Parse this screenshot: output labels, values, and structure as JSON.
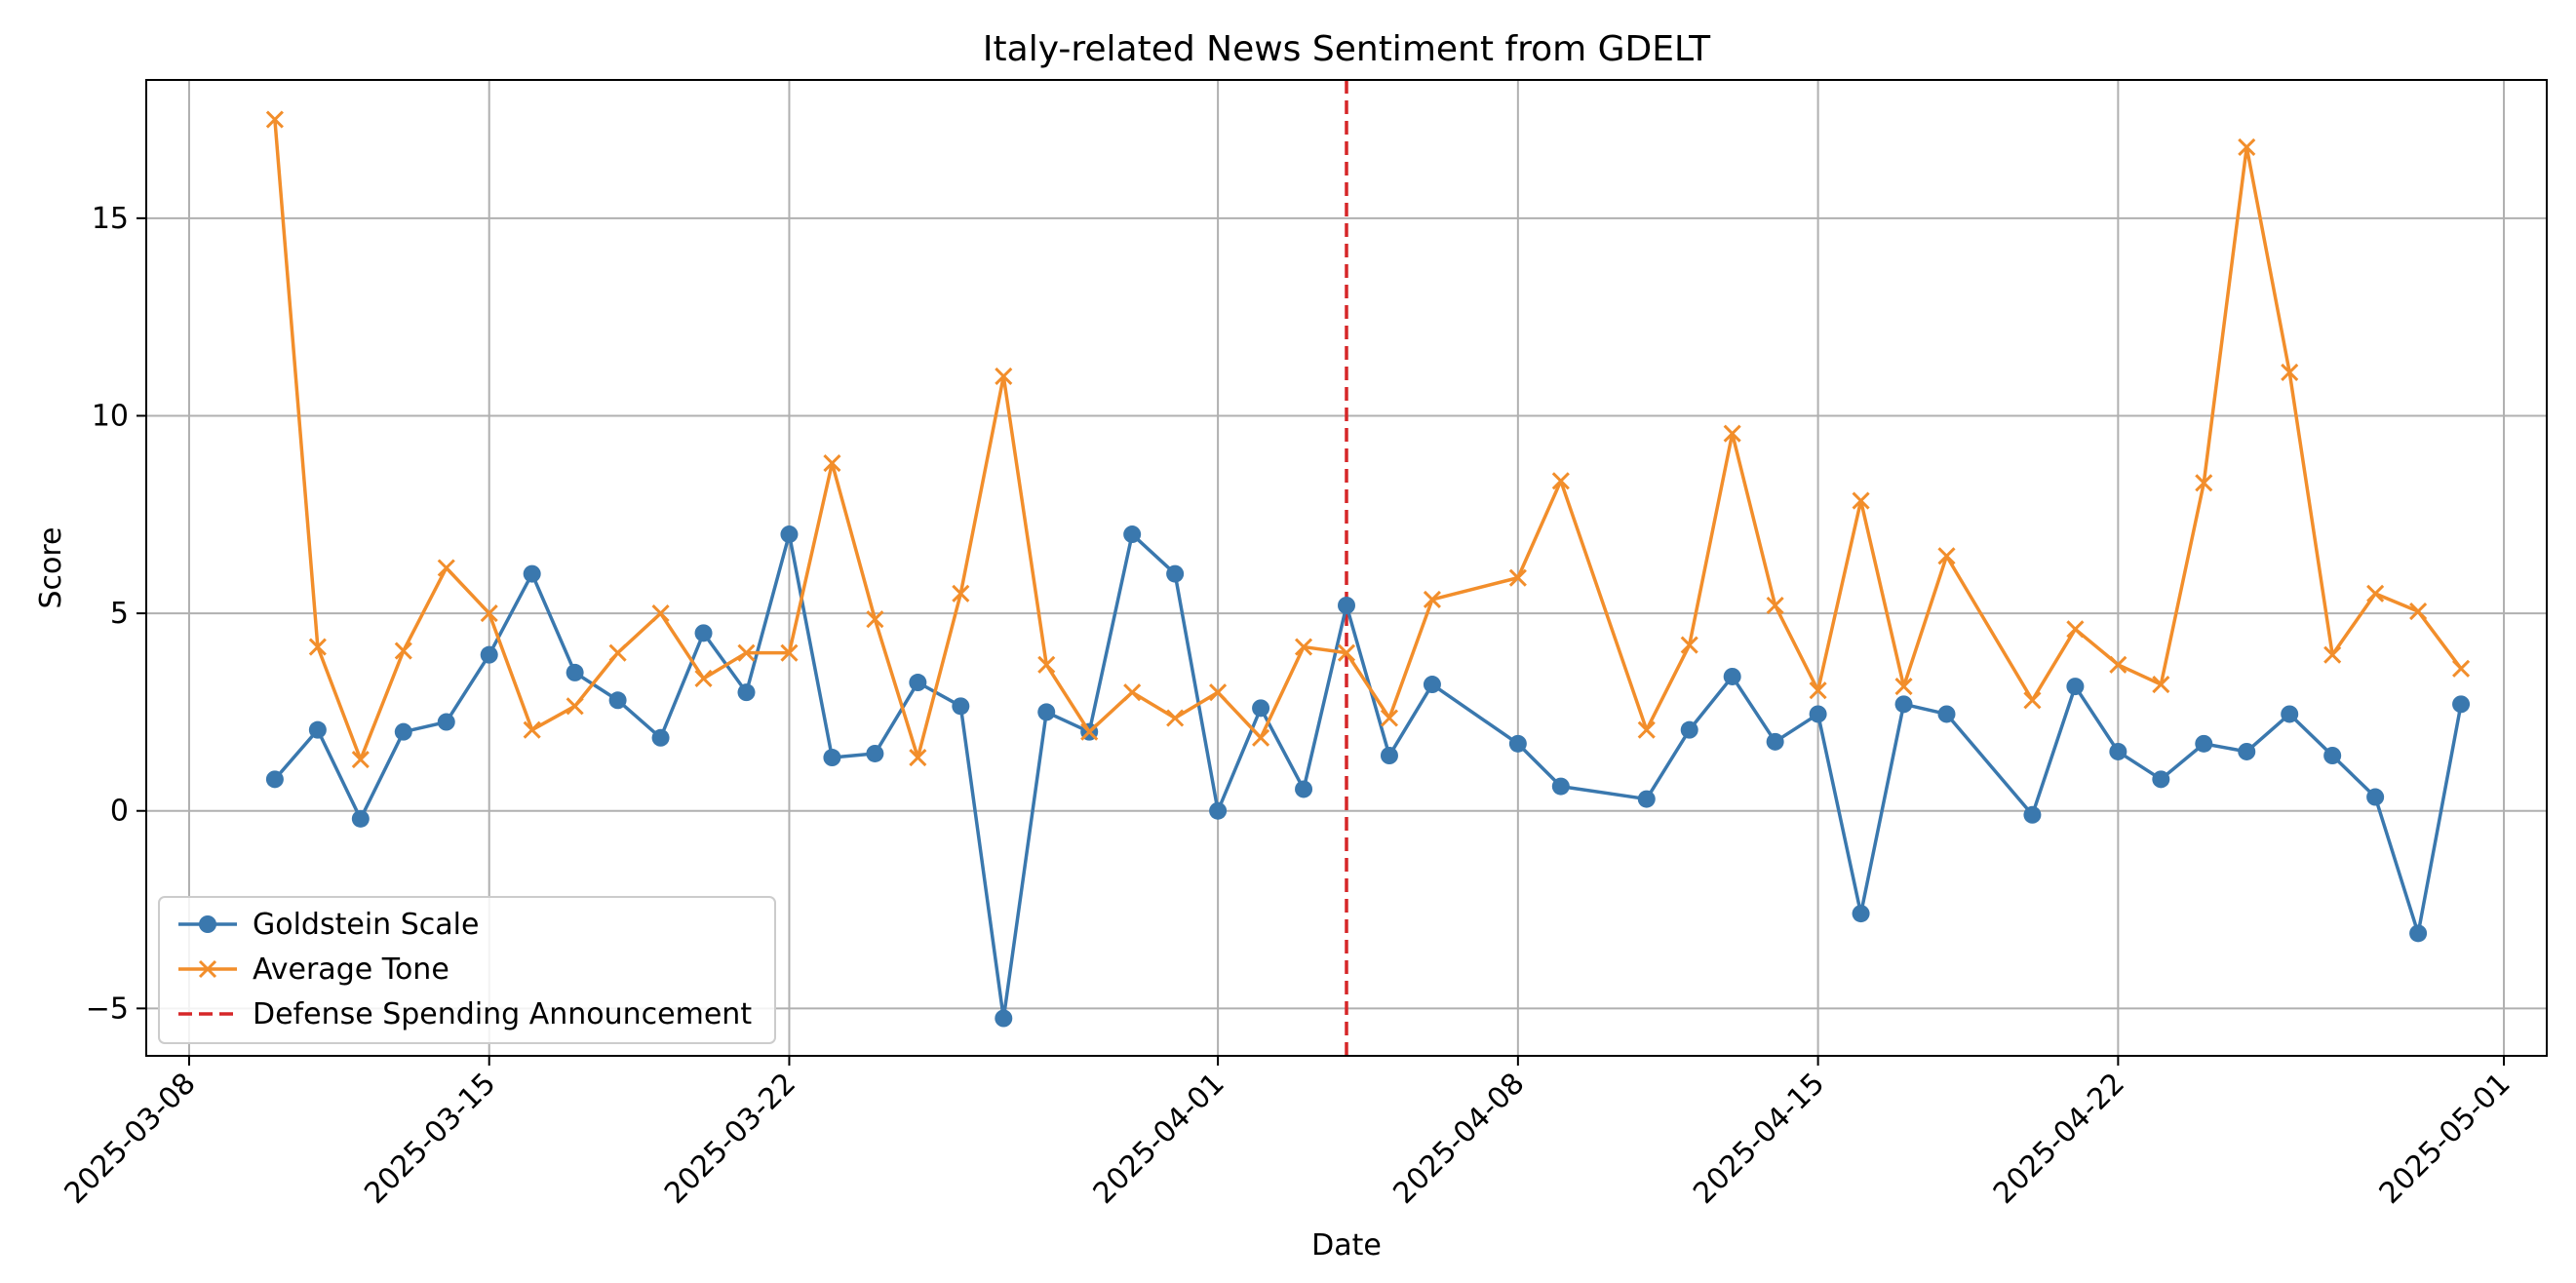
{
  "chart_data": {
    "type": "line",
    "title": "Italy-related News Sentiment from GDELT",
    "xlabel": "Date",
    "ylabel": "Score",
    "x_tick_labels": [
      "2025-03-08",
      "2025-03-15",
      "2025-03-22",
      "2025-04-01",
      "2025-04-08",
      "2025-04-15",
      "2025-04-22",
      "2025-05-01"
    ],
    "x_range": [
      "2025-03-07",
      "2025-05-02"
    ],
    "y_ticks": [
      -5,
      0,
      5,
      10,
      15
    ],
    "ylim": [
      -6.2,
      18.5
    ],
    "grid": true,
    "legend_position": "lower-left",
    "series": [
      {
        "name": "Goldstein Scale",
        "color": "#3a78ae",
        "marker": "circle",
        "points": [
          [
            "2025-03-10",
            0.8
          ],
          [
            "2025-03-11",
            2.05
          ],
          [
            "2025-03-12",
            -0.2
          ],
          [
            "2025-03-13",
            2.0
          ],
          [
            "2025-03-14",
            2.25
          ],
          [
            "2025-03-15",
            3.95
          ],
          [
            "2025-03-16",
            6.0
          ],
          [
            "2025-03-17",
            3.5
          ],
          [
            "2025-03-18",
            2.8
          ],
          [
            "2025-03-19",
            1.85
          ],
          [
            "2025-03-20",
            4.5
          ],
          [
            "2025-03-21",
            3.0
          ],
          [
            "2025-03-22",
            7.0
          ],
          [
            "2025-03-23",
            1.35
          ],
          [
            "2025-03-24",
            1.45
          ],
          [
            "2025-03-25",
            3.25
          ],
          [
            "2025-03-26",
            2.65
          ],
          [
            "2025-03-27",
            -5.25
          ],
          [
            "2025-03-28",
            2.5
          ],
          [
            "2025-03-29",
            2.0
          ],
          [
            "2025-03-30",
            7.0
          ],
          [
            "2025-03-31",
            6.0
          ],
          [
            "2025-04-01",
            0.0
          ],
          [
            "2025-04-02",
            2.6
          ],
          [
            "2025-04-03",
            0.55
          ],
          [
            "2025-04-04",
            5.2
          ],
          [
            "2025-04-05",
            1.4
          ],
          [
            "2025-04-06",
            3.2
          ],
          [
            "2025-04-08",
            1.7
          ],
          [
            "2025-04-09",
            0.62
          ],
          [
            "2025-04-11",
            0.3
          ],
          [
            "2025-04-12",
            2.05
          ],
          [
            "2025-04-13",
            3.4
          ],
          [
            "2025-04-14",
            1.75
          ],
          [
            "2025-04-15",
            2.45
          ],
          [
            "2025-04-16",
            -2.6
          ],
          [
            "2025-04-17",
            2.7
          ],
          [
            "2025-04-18",
            2.45
          ],
          [
            "2025-04-20",
            -0.1
          ],
          [
            "2025-04-21",
            3.15
          ],
          [
            "2025-04-22",
            1.5
          ],
          [
            "2025-04-23",
            0.8
          ],
          [
            "2025-04-24",
            1.7
          ],
          [
            "2025-04-25",
            1.5
          ],
          [
            "2025-04-26",
            2.45
          ],
          [
            "2025-04-27",
            1.4
          ],
          [
            "2025-04-28",
            0.35
          ],
          [
            "2025-04-29",
            -3.1
          ],
          [
            "2025-04-30",
            2.7
          ]
        ]
      },
      {
        "name": "Average Tone",
        "color": "#f28e2b",
        "marker": "x",
        "points": [
          [
            "2025-03-10",
            17.5
          ],
          [
            "2025-03-11",
            4.15
          ],
          [
            "2025-03-12",
            1.3
          ],
          [
            "2025-03-13",
            4.05
          ],
          [
            "2025-03-14",
            6.15
          ],
          [
            "2025-03-15",
            5.0
          ],
          [
            "2025-03-16",
            2.05
          ],
          [
            "2025-03-17",
            2.65
          ],
          [
            "2025-03-18",
            4.0
          ],
          [
            "2025-03-19",
            5.0
          ],
          [
            "2025-03-20",
            3.35
          ],
          [
            "2025-03-21",
            4.0
          ],
          [
            "2025-03-22",
            4.0
          ],
          [
            "2025-03-23",
            8.8
          ],
          [
            "2025-03-24",
            4.85
          ],
          [
            "2025-03-25",
            1.35
          ],
          [
            "2025-03-26",
            5.5
          ],
          [
            "2025-03-27",
            11.0
          ],
          [
            "2025-03-28",
            3.7
          ],
          [
            "2025-03-29",
            2.0
          ],
          [
            "2025-03-30",
            3.0
          ],
          [
            "2025-03-31",
            2.35
          ],
          [
            "2025-04-01",
            3.0
          ],
          [
            "2025-04-02",
            1.85
          ],
          [
            "2025-04-03",
            4.15
          ],
          [
            "2025-04-04",
            4.0
          ],
          [
            "2025-04-05",
            2.35
          ],
          [
            "2025-04-06",
            5.35
          ],
          [
            "2025-04-08",
            5.9
          ],
          [
            "2025-04-09",
            8.35
          ],
          [
            "2025-04-11",
            2.05
          ],
          [
            "2025-04-12",
            4.2
          ],
          [
            "2025-04-13",
            9.55
          ],
          [
            "2025-04-14",
            5.2
          ],
          [
            "2025-04-15",
            3.05
          ],
          [
            "2025-04-16",
            7.85
          ],
          [
            "2025-04-17",
            3.15
          ],
          [
            "2025-04-18",
            6.45
          ],
          [
            "2025-04-20",
            2.8
          ],
          [
            "2025-04-21",
            4.6
          ],
          [
            "2025-04-22",
            3.7
          ],
          [
            "2025-04-23",
            3.2
          ],
          [
            "2025-04-24",
            8.3
          ],
          [
            "2025-04-25",
            16.8
          ],
          [
            "2025-04-26",
            11.1
          ],
          [
            "2025-04-27",
            3.95
          ],
          [
            "2025-04-28",
            5.5
          ],
          [
            "2025-04-29",
            5.05
          ],
          [
            "2025-04-30",
            3.6
          ]
        ]
      }
    ],
    "annotations": [
      {
        "type": "vline",
        "name": "Defense Spending Announcement",
        "x": "2025-04-04",
        "color": "#d62728",
        "style": "dashed"
      }
    ]
  }
}
